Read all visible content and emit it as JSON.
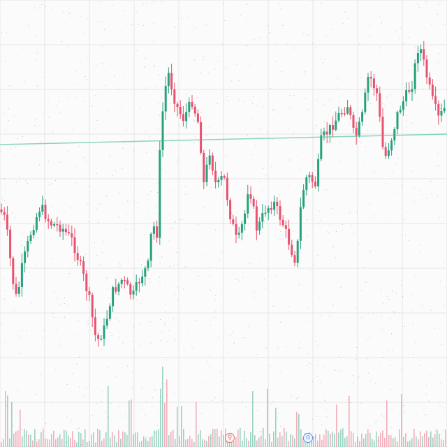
{
  "header": {
    "label": ""
  },
  "chart_data": {
    "type": "candlestick",
    "grid": true,
    "horizontal_line": {
      "y": 0.0,
      "color": "#3cc08a"
    },
    "colors": {
      "up": "#26a17b",
      "down": "#e8526f",
      "background": "#fbfbfb",
      "grid": "#e6e6e6"
    },
    "note": ""
  },
  "markers": [
    {
      "id": "event-a",
      "glyph": "♀",
      "color": "#e57373"
    },
    {
      "id": "event-b",
      "glyph": "⊙",
      "color": "#5c8fe6"
    }
  ]
}
